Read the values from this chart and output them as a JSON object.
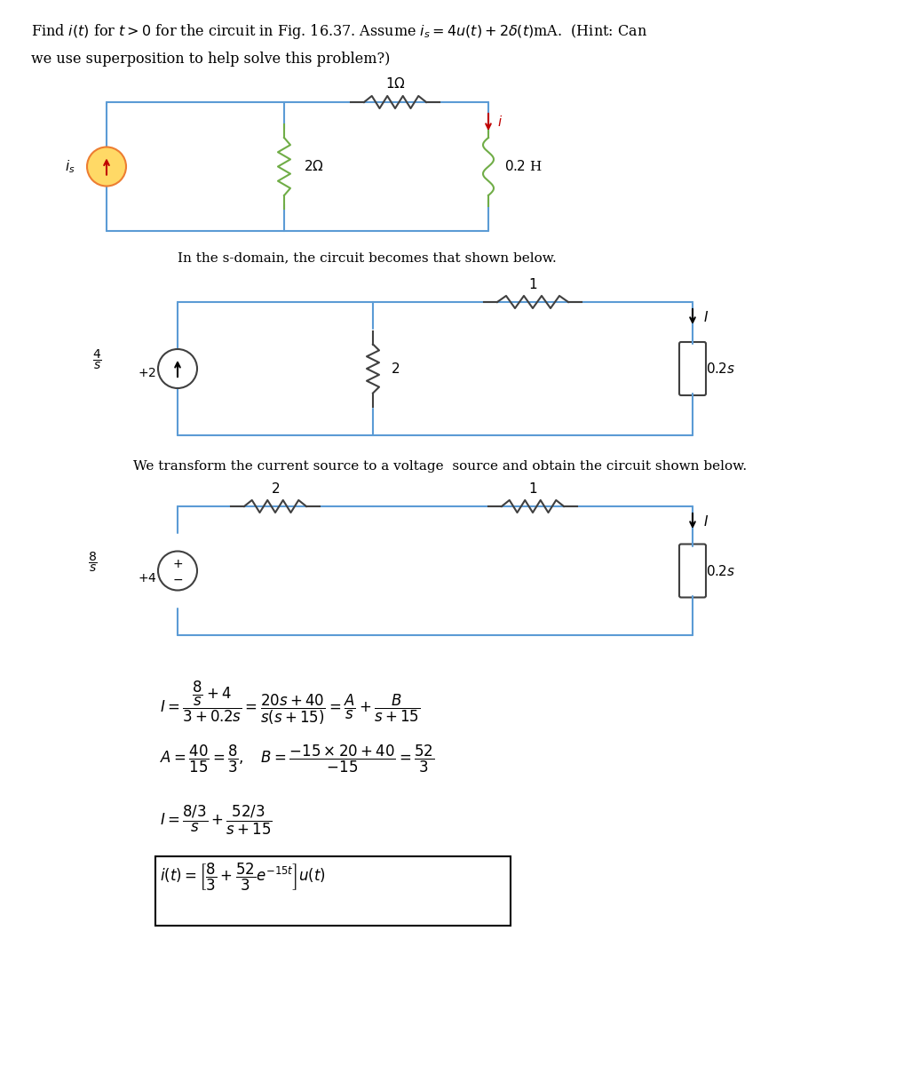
{
  "title_text": "Find $i(t)$ for $t > 0$ for the circuit in Fig. 16.37. Assume $i_s = 4u(t) + 2\\delta(t)$mA.  (Hint: Can\nwe use superposition to help solve this problem?)",
  "sdomain_text": "In the s-domain, the circuit becomes that shown below.",
  "transform_text": "We transform the current source to a voltage  source and obtain the circuit shown below.",
  "bg_color": "#ffffff",
  "circuit1_color": "#5b9bd5",
  "resistor1_color": "#404040",
  "inductor1_color": "#70ad47",
  "source1_color": "#ed7d31",
  "arrow_color": "#c00000",
  "math_lines": [
    "$I = \\dfrac{\\dfrac{8}{s}+4}{3+0.2s} = \\dfrac{20s+40}{s(s+15)} = \\dfrac{A}{s} + \\dfrac{B}{s+15}$",
    "$A = \\dfrac{40}{15} = \\dfrac{8}{3}, \\quad B = \\dfrac{-15\\times20+40}{-15} = \\dfrac{52}{3}$",
    "$I = \\dfrac{8/3}{s} + \\dfrac{52/3}{s+15}$",
    "$i(t) = \\left[\\dfrac{8}{3} + \\dfrac{52}{3}e^{-15t}\\right]u(t)$"
  ]
}
